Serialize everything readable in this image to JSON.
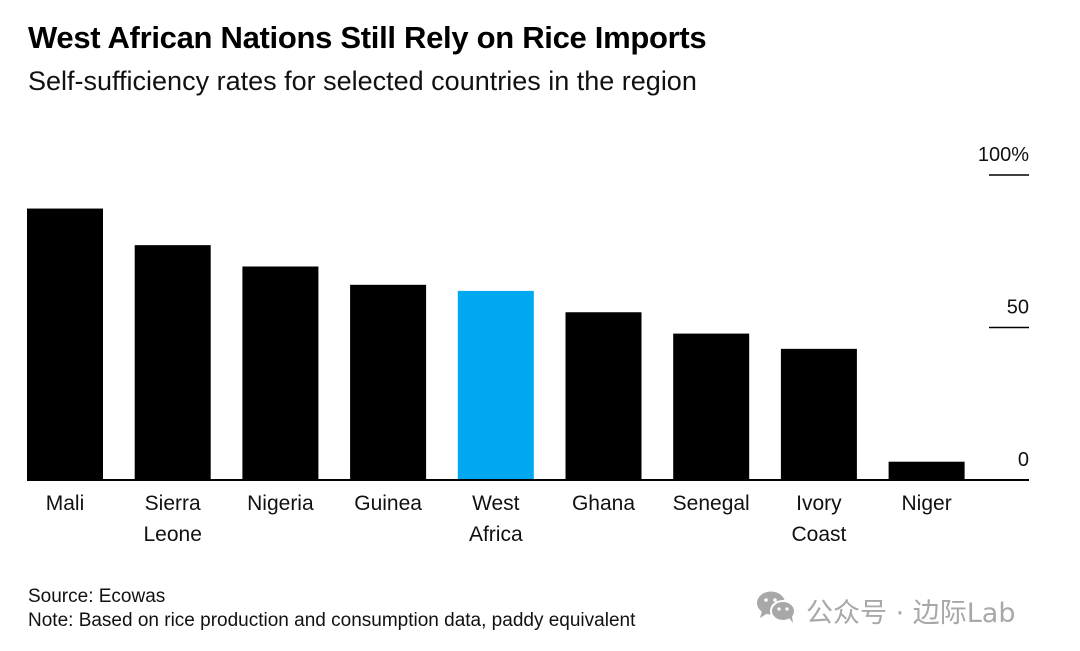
{
  "title": "West African Nations Still Rely on Rice Imports",
  "subtitle": "Self-sufficiency rates for selected countries in the region",
  "footer": {
    "source": "Source: Ecowas",
    "note": "Note: Based on rice production and consumption data, paddy equivalent"
  },
  "watermark": {
    "icon": "wechat-icon",
    "text": "公众号 · 边际Lab"
  },
  "colors": {
    "default_bar": "#000000",
    "highlight_bar": "#00a8f0",
    "axis": "#000000"
  },
  "chart_data": {
    "type": "bar",
    "title": "West African Nations Still Rely on Rice Imports",
    "subtitle": "Self-sufficiency rates for selected countries in the region",
    "xlabel": "",
    "ylabel": "",
    "ylim": [
      0,
      100
    ],
    "yticks": [
      {
        "value": 100,
        "label": "100%"
      },
      {
        "value": 50,
        "label": "50"
      },
      {
        "value": 0,
        "label": "0"
      }
    ],
    "y_axis_side": "right",
    "grid": false,
    "categories": [
      [
        "Mali"
      ],
      [
        "Sierra",
        "Leone"
      ],
      [
        "Nigeria"
      ],
      [
        "Guinea"
      ],
      [
        "West",
        "Africa"
      ],
      [
        "Ghana"
      ],
      [
        "Senegal"
      ],
      [
        "Ivory",
        "Coast"
      ],
      [
        "Niger"
      ]
    ],
    "values": [
      89,
      77,
      70,
      64,
      62,
      55,
      48,
      43,
      6
    ],
    "highlight_index": 4,
    "unit": "%"
  }
}
